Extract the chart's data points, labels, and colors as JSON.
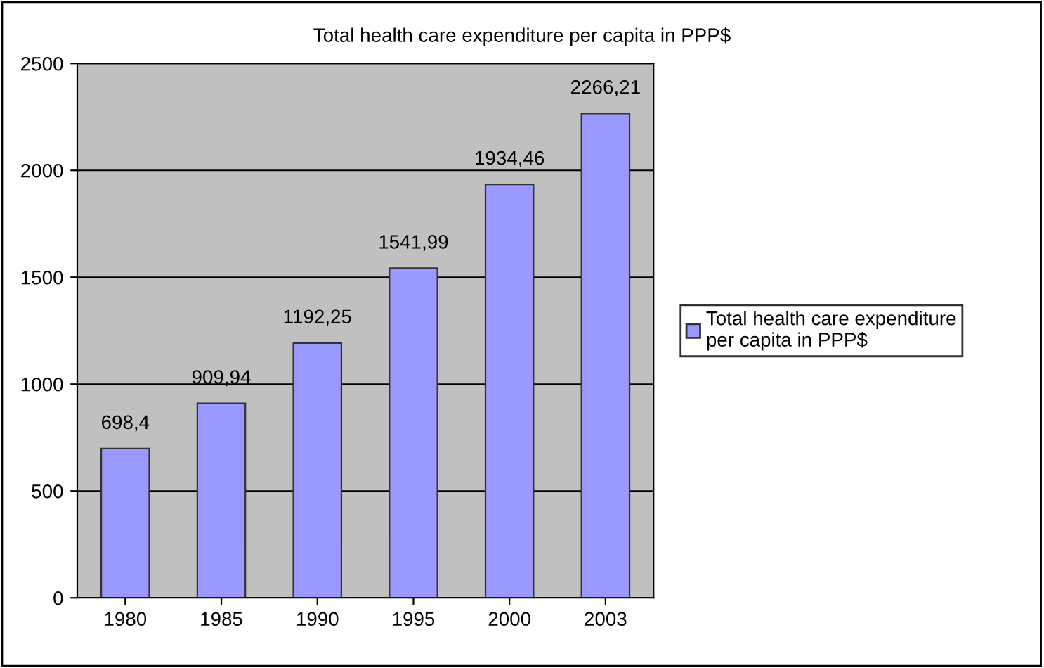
{
  "chart_data": {
    "type": "bar",
    "title": "Total health care expenditure per capita in PPP$",
    "categories": [
      "1980",
      "1985",
      "1990",
      "1995",
      "2000",
      "2003"
    ],
    "series": [
      {
        "name": "Total health care expenditure per capita in PPP$",
        "color": "#9999ff",
        "values": [
          698.4,
          909.94,
          1192.25,
          1541.99,
          1934.46,
          2266.21
        ],
        "value_labels": [
          "698,4",
          "909,94",
          "1192,25",
          "1541,99",
          "1934,46",
          "2266,21"
        ]
      }
    ],
    "ylim": [
      0,
      2500
    ],
    "yticks": [
      0,
      500,
      1000,
      1500,
      2000,
      2500
    ],
    "grid": "y",
    "legend": "right"
  }
}
